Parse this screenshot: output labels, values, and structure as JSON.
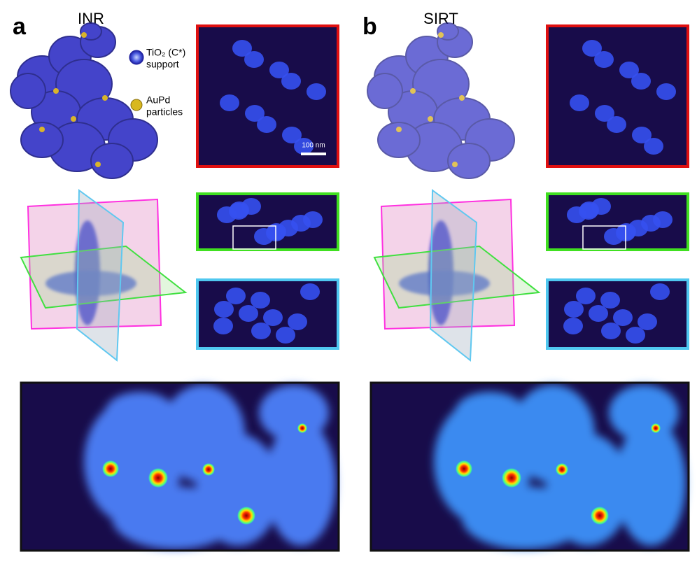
{
  "panels": [
    {
      "label": "a",
      "title": "INR"
    },
    {
      "label": "b",
      "title": "SIRT"
    }
  ],
  "legend": [
    {
      "label": "TiO₂ (C*)",
      "sublabel": "support"
    },
    {
      "label": "AuPd",
      "sublabel": "particles"
    }
  ],
  "scale_bar": "100 nm"
}
